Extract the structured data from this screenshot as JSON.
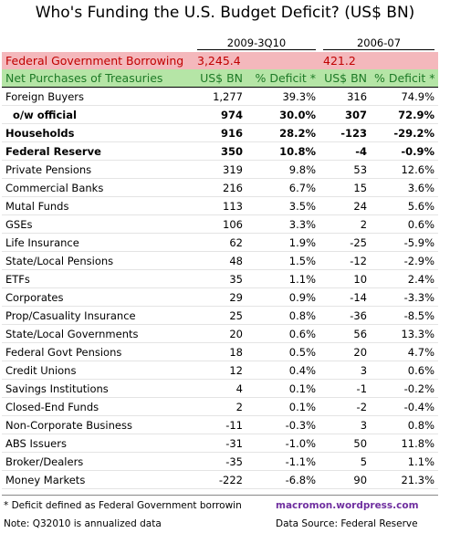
{
  "title": "Who's Funding the U.S. Budget Deficit? (US$ BN)",
  "periods": [
    "2009-3Q10",
    "2006-07"
  ],
  "borrowing": {
    "label": "Federal Government Borrowing",
    "values": [
      "3,245.4",
      "421.2"
    ]
  },
  "header": [
    "Net Purchases of Treasuries",
    "US$ BN",
    "% Deficit *",
    "US$ BN",
    "% Deficit *"
  ],
  "rows": [
    {
      "cells": [
        "Foreign Buyers",
        "1,277",
        "39.3%",
        "316",
        "74.9%"
      ],
      "bold": false
    },
    {
      "cells": [
        "o/w official",
        "974",
        "30.0%",
        "307",
        "72.9%"
      ],
      "bold": true
    },
    {
      "cells": [
        "Households",
        "916",
        "28.2%",
        "-123",
        "-29.2%"
      ],
      "bold": true
    },
    {
      "cells": [
        "Federal Reserve",
        "350",
        "10.8%",
        "-4",
        "-0.9%"
      ],
      "bold": true
    },
    {
      "cells": [
        "Private Pensions",
        "319",
        "9.8%",
        "53",
        "12.6%"
      ],
      "bold": false
    },
    {
      "cells": [
        "Commercial Banks",
        "216",
        "6.7%",
        "15",
        "3.6%"
      ],
      "bold": false
    },
    {
      "cells": [
        "Mutal Funds",
        "113",
        "3.5%",
        "24",
        "5.6%"
      ],
      "bold": false
    },
    {
      "cells": [
        "GSEs",
        "106",
        "3.3%",
        "2",
        "0.6%"
      ],
      "bold": false
    },
    {
      "cells": [
        "Life Insurance",
        "62",
        "1.9%",
        "-25",
        "-5.9%"
      ],
      "bold": false
    },
    {
      "cells": [
        "State/Local Pensions",
        "48",
        "1.5%",
        "-12",
        "-2.9%"
      ],
      "bold": false
    },
    {
      "cells": [
        "ETFs",
        "35",
        "1.1%",
        "10",
        "2.4%"
      ],
      "bold": false
    },
    {
      "cells": [
        "Corporates",
        "29",
        "0.9%",
        "-14",
        "-3.3%"
      ],
      "bold": false
    },
    {
      "cells": [
        "Prop/Casuality Insurance",
        "25",
        "0.8%",
        "-36",
        "-8.5%"
      ],
      "bold": false
    },
    {
      "cells": [
        "State/Local Governments",
        "20",
        "0.6%",
        "56",
        "13.3%"
      ],
      "bold": false
    },
    {
      "cells": [
        "Federal Govt Pensions",
        "18",
        "0.5%",
        "20",
        "4.7%"
      ],
      "bold": false
    },
    {
      "cells": [
        "Credit Unions",
        "12",
        "0.4%",
        "3",
        "0.6%"
      ],
      "bold": false
    },
    {
      "cells": [
        "Savings Institutions",
        "4",
        "0.1%",
        "-1",
        "-0.2%"
      ],
      "bold": false
    },
    {
      "cells": [
        "Closed-End Funds",
        "2",
        "0.1%",
        "-2",
        "-0.4%"
      ],
      "bold": false
    },
    {
      "cells": [
        "Non-Corporate Business",
        "-11",
        "-0.3%",
        "3",
        "0.8%"
      ],
      "bold": false
    },
    {
      "cells": [
        "ABS Issuers",
        "-31",
        "-1.0%",
        "50",
        "11.8%"
      ],
      "bold": false
    },
    {
      "cells": [
        "Broker/Dealers",
        "-35",
        "-1.1%",
        "5",
        "1.1%"
      ],
      "bold": false
    },
    {
      "cells": [
        "Money Markets",
        "-222",
        "-6.8%",
        "90",
        "21.3%"
      ],
      "bold": false
    }
  ],
  "footer": {
    "note1": "* Deficit defined as Federal Government borrowin",
    "site": "macromon.wordpress.com",
    "note2": "Note: Q32010 is annualized data",
    "source": "Data Source: Federal Reserve"
  }
}
